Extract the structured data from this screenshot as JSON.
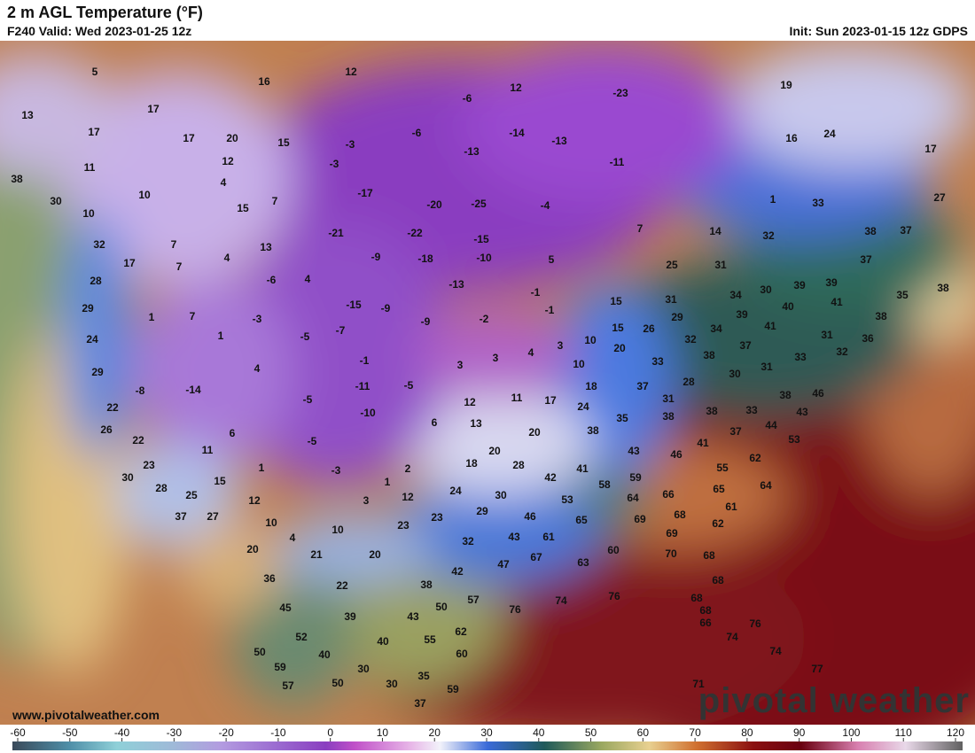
{
  "header": {
    "title": "2 m AGL Temperature (°F)",
    "valid": "F240 Valid: Wed 2023-01-25 12z",
    "init": "Init: Sun 2023-01-15 12z GDPS"
  },
  "watermark": "www.pivotalweather.com",
  "logo": "pivotal weather",
  "map": {
    "labels": [
      5,
      12,
      16,
      13,
      17,
      17,
      17,
      20,
      15,
      12,
      11,
      10,
      4,
      15,
      7,
      -3,
      -3,
      -17,
      -20,
      -25,
      -6,
      -6,
      12,
      -23,
      -14,
      -13,
      -13,
      -11,
      -4,
      19,
      16,
      24,
      17,
      27,
      33,
      1,
      14,
      32,
      38,
      37,
      37,
      38,
      30,
      10,
      32,
      17,
      7,
      7,
      4,
      13,
      -6,
      4,
      -21,
      -9,
      -22,
      -18,
      -15,
      -10,
      -13,
      5,
      -1,
      28,
      29,
      1,
      7,
      -3,
      -15,
      -9,
      -9,
      -2,
      -1,
      24,
      1,
      -5,
      -7,
      -1,
      29,
      -8,
      -14,
      4,
      3,
      3,
      4,
      3,
      10,
      10,
      15,
      15,
      26,
      29,
      20,
      31,
      31,
      25,
      7,
      34,
      30,
      39,
      39,
      40,
      41,
      35,
      38,
      38,
      39,
      41,
      34,
      32,
      37,
      38,
      33,
      31,
      36,
      32,
      33,
      31,
      30,
      28,
      37,
      31,
      18,
      17,
      24,
      12,
      11,
      -5,
      -11,
      -5,
      -10,
      22,
      26,
      6,
      6,
      13,
      20,
      38,
      35,
      38,
      38,
      33,
      38,
      46,
      43,
      44,
      37,
      41,
      46,
      43,
      53,
      62,
      55,
      22,
      11,
      1,
      -5,
      -3,
      2,
      1,
      18,
      20,
      28,
      41,
      42,
      58,
      59,
      66,
      65,
      64,
      23,
      30,
      28,
      25,
      15,
      12,
      3,
      12,
      24,
      30,
      53,
      64,
      37,
      27,
      10,
      4,
      10,
      23,
      23,
      29,
      46,
      65,
      69,
      68,
      61,
      62,
      20,
      21,
      20,
      32,
      43,
      61,
      69,
      47,
      42,
      67,
      63,
      60,
      70,
      68,
      36,
      22,
      38,
      68,
      45,
      50,
      57,
      76,
      74,
      76,
      68,
      68,
      39,
      43,
      52,
      55,
      62,
      40,
      66,
      74,
      76,
      50,
      40,
      60,
      59,
      30,
      35,
      57,
      50,
      30,
      59,
      37,
      74,
      77,
      71
    ]
  },
  "colorbar": {
    "ticks": [
      -60,
      -50,
      -40,
      -30,
      -20,
      -10,
      0,
      10,
      20,
      30,
      40,
      50,
      60,
      70,
      80,
      90,
      100,
      110,
      120
    ]
  }
}
